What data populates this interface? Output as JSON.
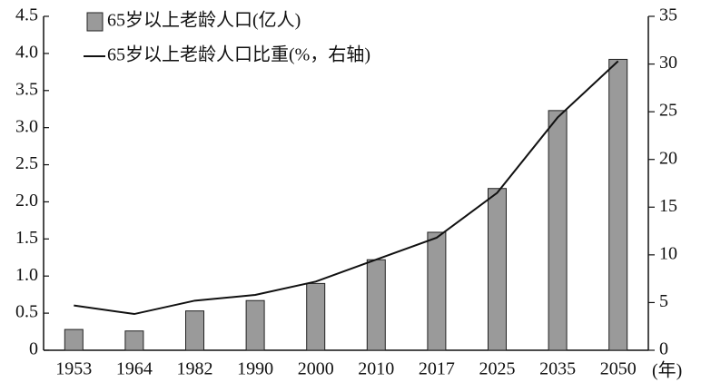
{
  "chart_data": {
    "type": "bar",
    "categories": [
      "1953",
      "1964",
      "1982",
      "1990",
      "2000",
      "2010",
      "2017",
      "2025",
      "2035",
      "2050"
    ],
    "x_label": "(年)",
    "series": [
      {
        "name": "65岁以上老龄人口(亿人)",
        "type": "bar",
        "color": "#9a9a9a",
        "values": [
          0.28,
          0.26,
          0.53,
          0.67,
          0.9,
          1.22,
          1.59,
          2.18,
          3.23,
          3.92
        ]
      },
      {
        "name": "65岁以上老龄人口比重(%，右轴)",
        "type": "line",
        "axis": "y2",
        "color": "#111111",
        "values": [
          4.7,
          3.8,
          5.2,
          5.8,
          7.2,
          9.5,
          11.8,
          16.5,
          24.4,
          30.3
        ]
      }
    ],
    "ylim": [
      0,
      4.5
    ],
    "yticks": [
      0,
      0.5,
      {
        "value": 1,
        "label": "1.0"
      },
      1.5,
      {
        "value": 2,
        "label": "2.0"
      },
      2.5,
      {
        "value": 3,
        "label": "3.0"
      },
      3.5,
      {
        "value": 4,
        "label": "4.0"
      },
      4.5
    ],
    "y2lim": [
      0,
      35
    ],
    "y2ticks": [
      0,
      5,
      10,
      15,
      20,
      25,
      30,
      35
    ],
    "grid": false,
    "legend": "top-left"
  }
}
